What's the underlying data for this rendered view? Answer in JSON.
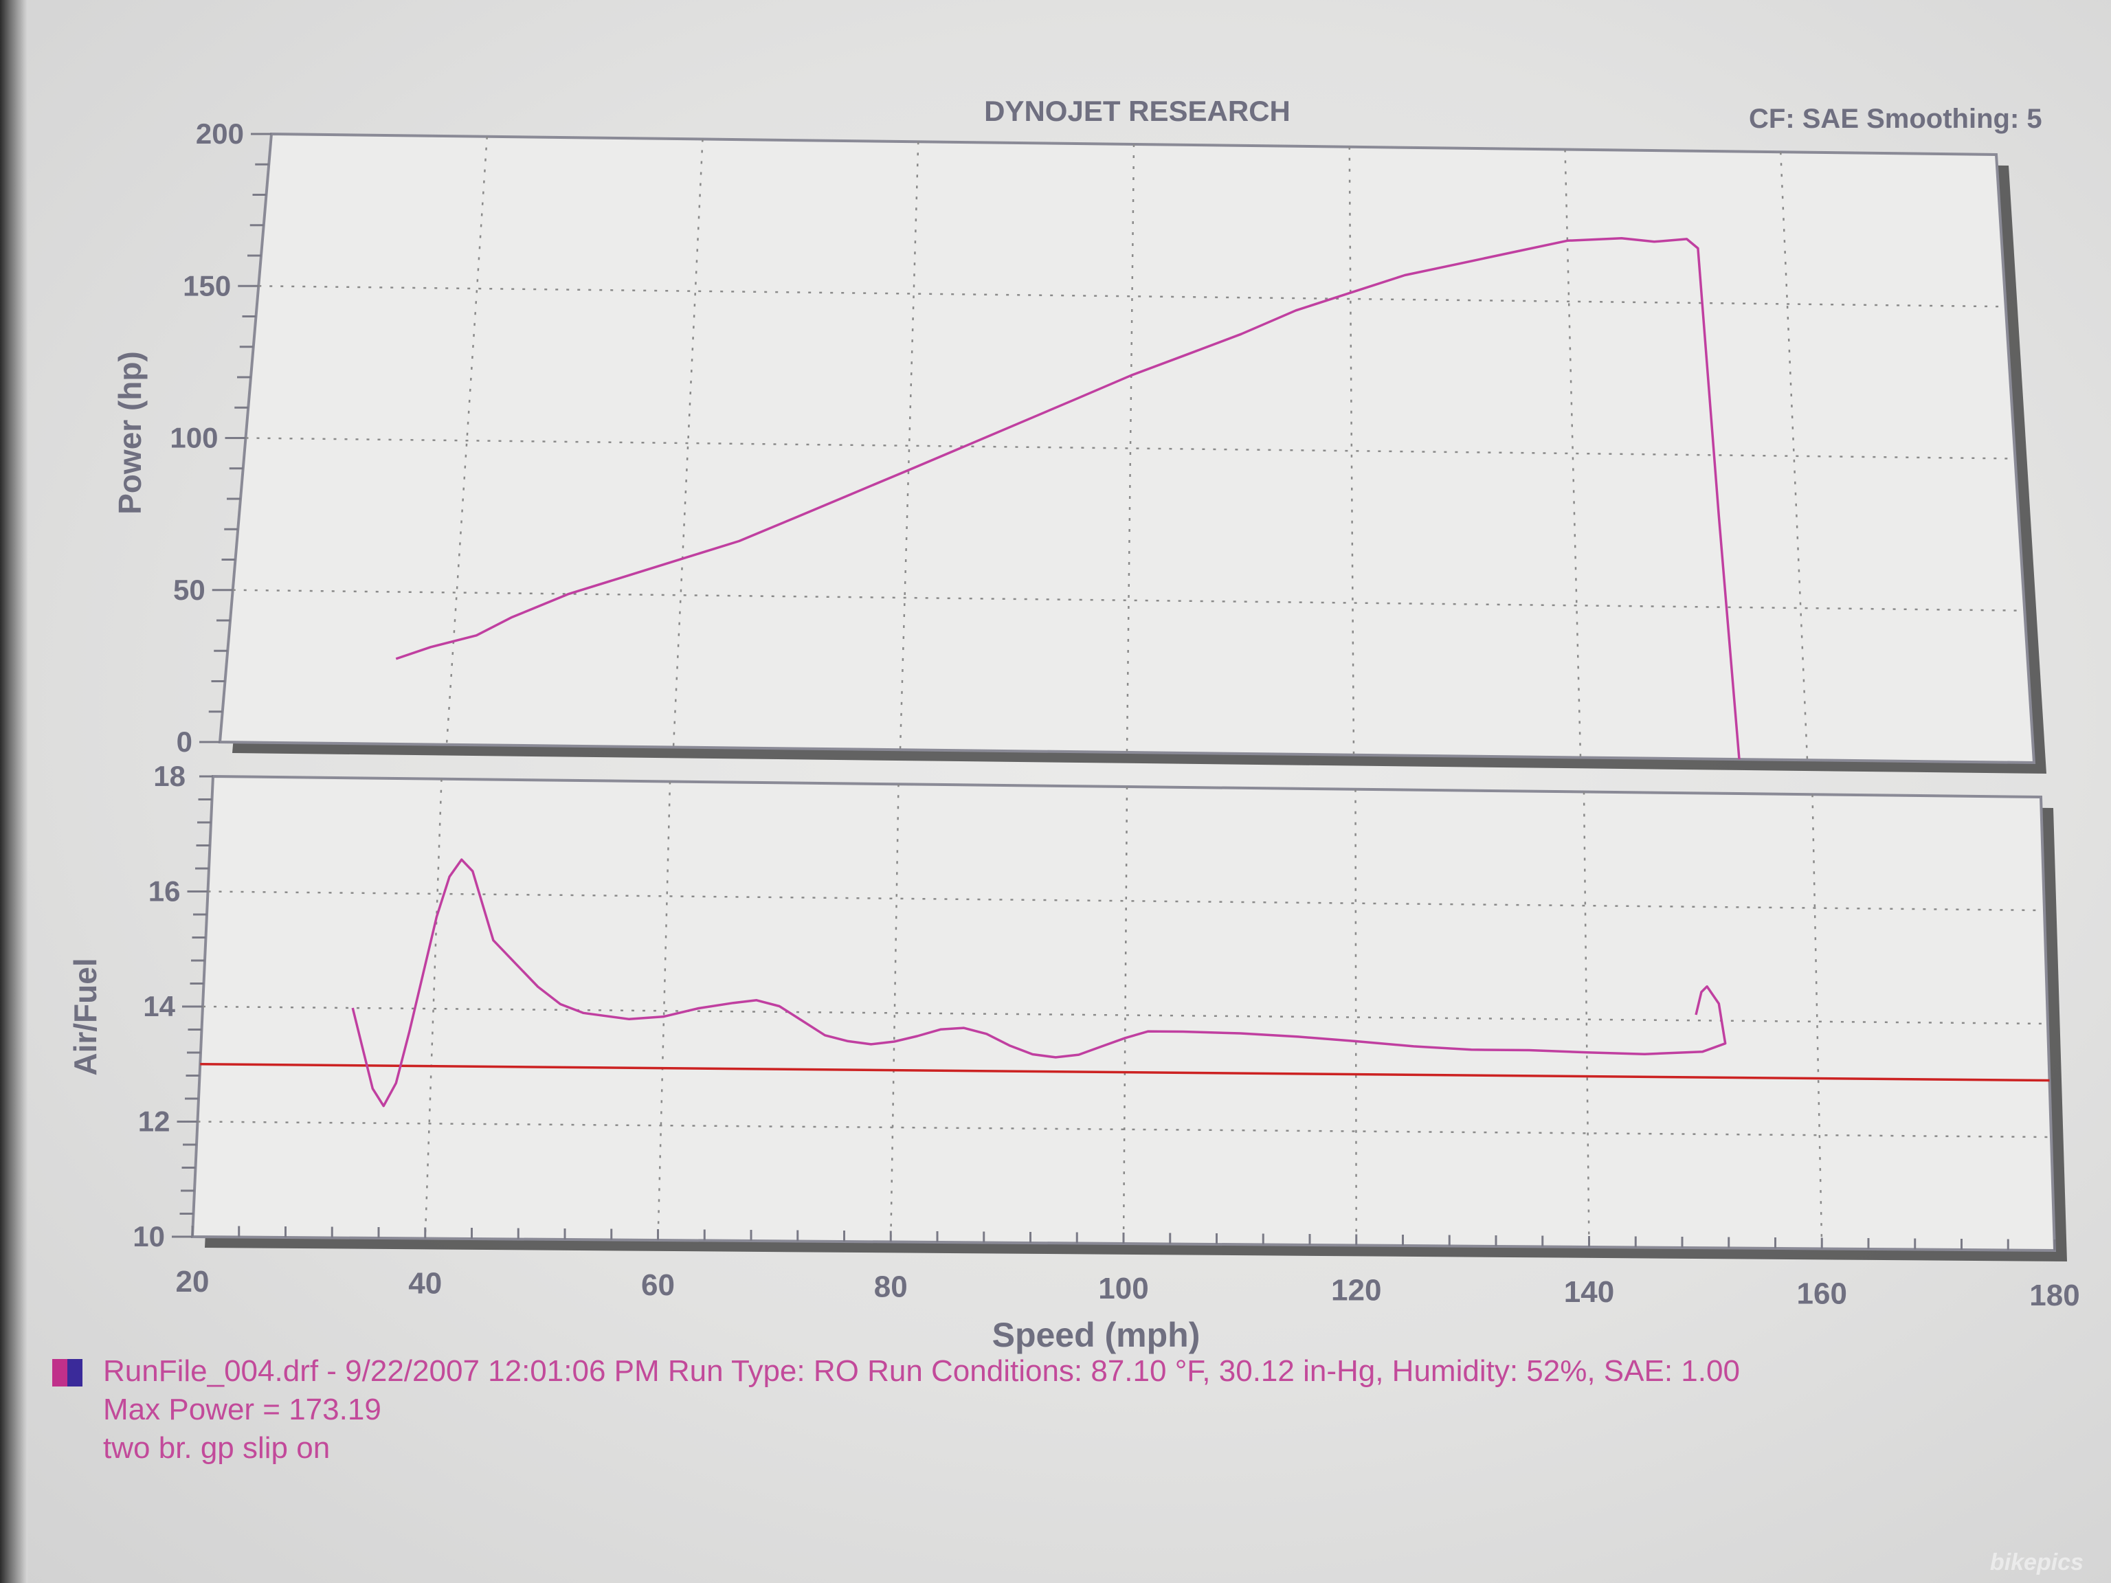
{
  "header": {
    "title": "DYNOJET RESEARCH",
    "settings": "CF: SAE  Smoothing: 5"
  },
  "footer": {
    "run_info": "RunFile_004.drf - 9/22/2007 12:01:06 PM  Run Type: RO  Run Conditions: 87.10 °F, 30.12 in-Hg,  Humidity:  52%, SAE: 1.00",
    "max_power": "Max Power = 173.19",
    "note": "two br. gp slip on",
    "text_color": "#c24a9a"
  },
  "watermark": "bikepics",
  "colors": {
    "curve": "#c03fa0",
    "target_line": "#cc2222",
    "axis_text": "#6f6f80",
    "grid": "#8a8a8a"
  },
  "chart_data": [
    {
      "type": "line",
      "ylabel": "Power (hp)",
      "xlabel": "Speed (mph)",
      "xlim": [
        20,
        180
      ],
      "ylim": [
        0,
        200
      ],
      "xticks": [
        20,
        40,
        60,
        80,
        100,
        120,
        140,
        160,
        180
      ],
      "yticks": [
        0,
        50,
        100,
        150,
        200
      ],
      "grid": true,
      "series": [
        {
          "points": [
            [
              35,
              28
            ],
            [
              38,
              32
            ],
            [
              42,
              36
            ],
            [
              45,
              42
            ],
            [
              50,
              50
            ],
            [
              55,
              56
            ],
            [
              60,
              62
            ],
            [
              65,
              68
            ],
            [
              70,
              76
            ],
            [
              75,
              84
            ],
            [
              80,
              92
            ],
            [
              85,
              100
            ],
            [
              90,
              108
            ],
            [
              95,
              116
            ],
            [
              100,
              124
            ],
            [
              105,
              131
            ],
            [
              110,
              138
            ],
            [
              115,
              146
            ],
            [
              120,
              152
            ],
            [
              125,
              158
            ],
            [
              130,
              162
            ],
            [
              135,
              166
            ],
            [
              140,
              170
            ],
            [
              145,
              171
            ],
            [
              148,
              170
            ],
            [
              151,
              171
            ],
            [
              152,
              168
            ],
            [
              153,
              80
            ],
            [
              154,
              0
            ]
          ]
        }
      ]
    },
    {
      "type": "line",
      "ylabel": "Air/Fuel",
      "xlabel": "Speed (mph)",
      "xlim": [
        20,
        180
      ],
      "ylim": [
        10,
        18
      ],
      "xticks": [
        20,
        40,
        60,
        80,
        100,
        120,
        140,
        160,
        180
      ],
      "yticks": [
        10,
        12,
        14,
        16,
        18
      ],
      "grid": true,
      "reference_line": 13.0,
      "series": [
        {
          "points": [
            [
              33,
              14.0
            ],
            [
              34,
              13.3
            ],
            [
              35,
              12.6
            ],
            [
              36,
              12.3
            ],
            [
              37,
              12.7
            ],
            [
              38,
              13.6
            ],
            [
              39,
              14.6
            ],
            [
              40,
              15.6
            ],
            [
              41,
              16.3
            ],
            [
              42,
              16.6
            ],
            [
              43,
              16.4
            ],
            [
              44,
              15.8
            ],
            [
              45,
              15.2
            ],
            [
              47,
              14.8
            ],
            [
              49,
              14.4
            ],
            [
              51,
              14.1
            ],
            [
              53,
              13.95
            ],
            [
              55,
              13.9
            ],
            [
              57,
              13.85
            ],
            [
              60,
              13.9
            ],
            [
              63,
              14.05
            ],
            [
              66,
              14.15
            ],
            [
              68,
              14.2
            ],
            [
              70,
              14.1
            ],
            [
              72,
              13.85
            ],
            [
              74,
              13.6
            ],
            [
              76,
              13.5
            ],
            [
              78,
              13.45
            ],
            [
              80,
              13.5
            ],
            [
              82,
              13.6
            ],
            [
              84,
              13.72
            ],
            [
              86,
              13.75
            ],
            [
              88,
              13.65
            ],
            [
              90,
              13.45
            ],
            [
              92,
              13.3
            ],
            [
              94,
              13.25
            ],
            [
              96,
              13.3
            ],
            [
              98,
              13.45
            ],
            [
              100,
              13.6
            ],
            [
              102,
              13.72
            ],
            [
              105,
              13.72
            ],
            [
              110,
              13.7
            ],
            [
              115,
              13.65
            ],
            [
              120,
              13.58
            ],
            [
              125,
              13.5
            ],
            [
              130,
              13.45
            ],
            [
              135,
              13.45
            ],
            [
              140,
              13.42
            ],
            [
              145,
              13.4
            ],
            [
              150,
              13.45
            ],
            [
              152,
              13.6
            ],
            [
              151.5,
              14.3
            ],
            [
              150.5,
              14.6
            ],
            [
              150,
              14.5
            ],
            [
              149.5,
              14.1
            ]
          ]
        }
      ]
    }
  ]
}
